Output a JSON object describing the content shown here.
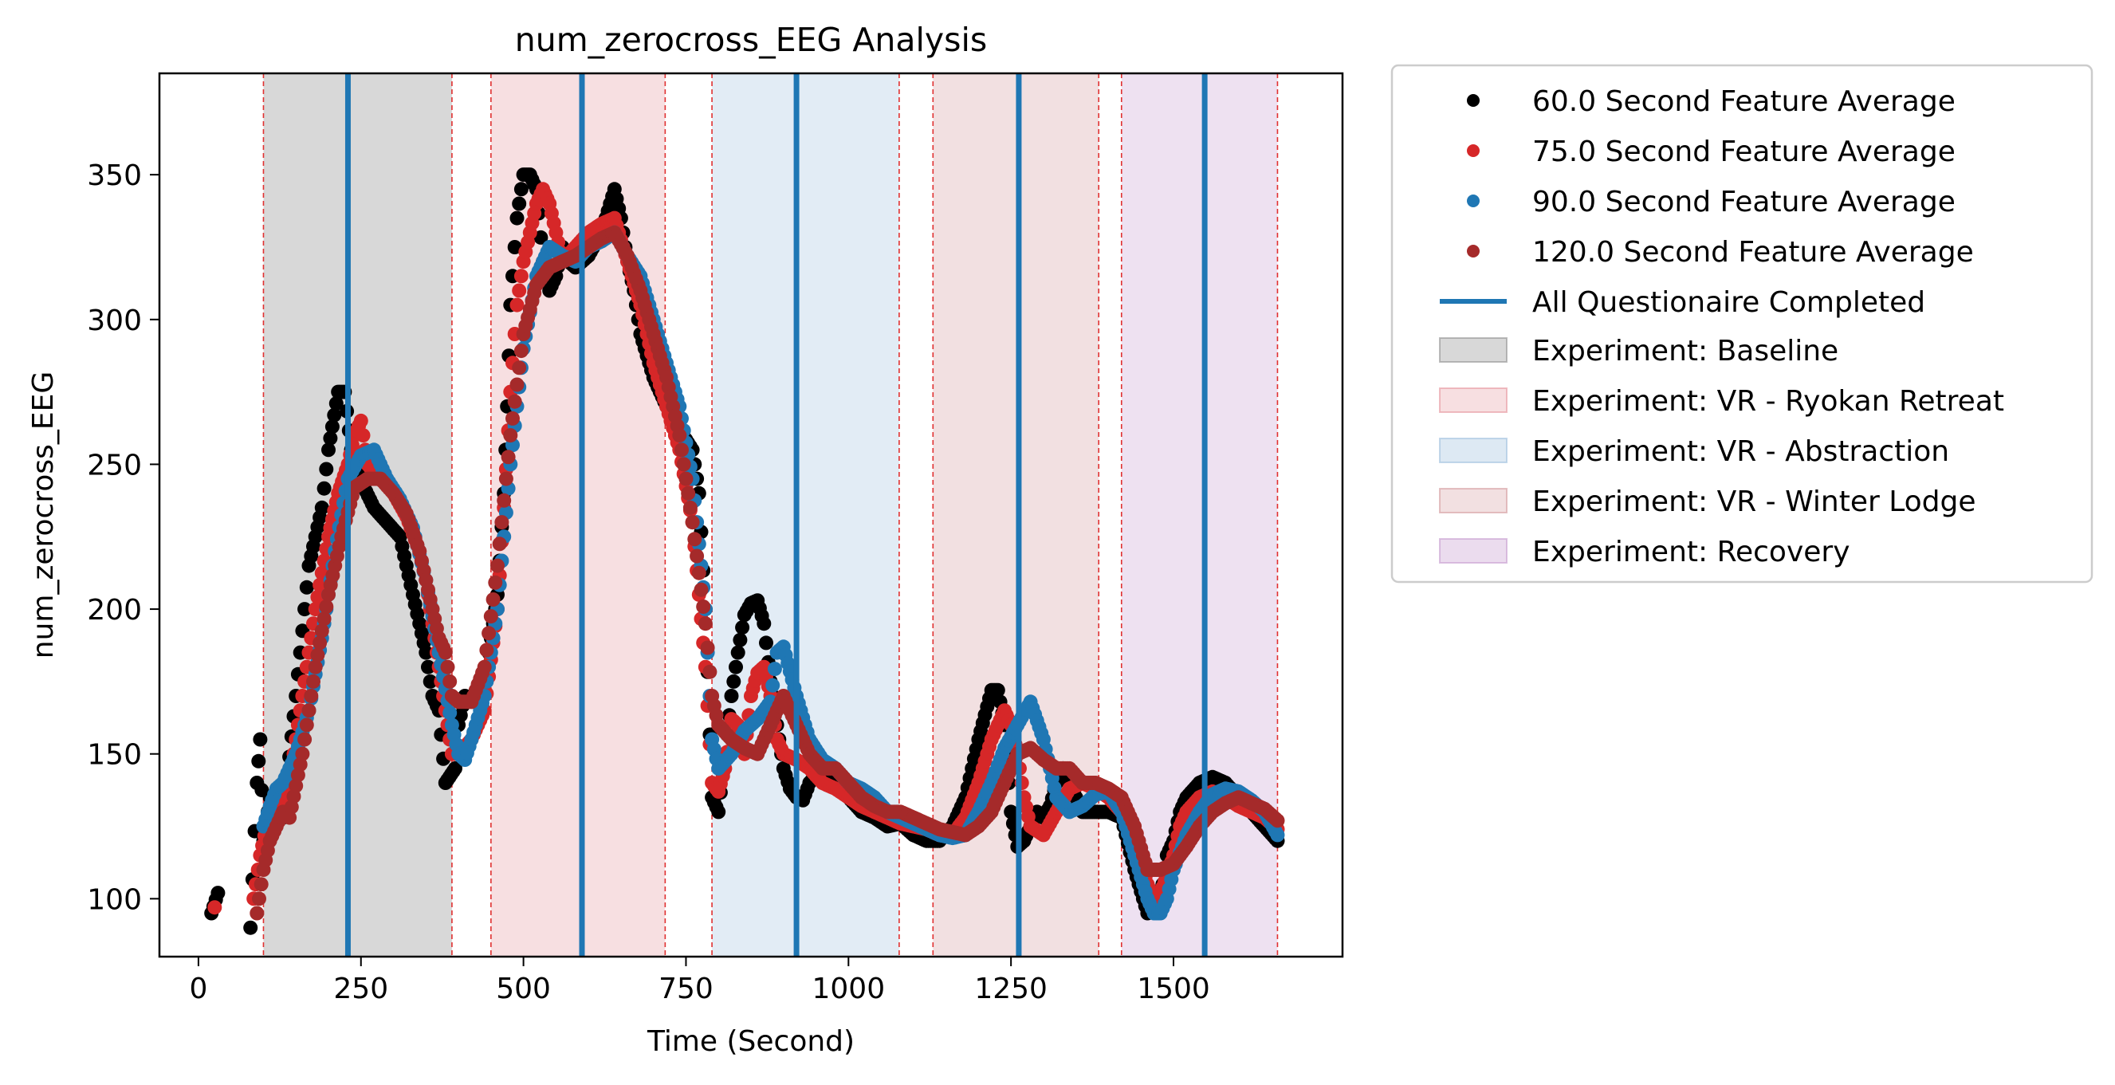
{
  "chart_data": {
    "type": "scatter",
    "title": "num_zerocross_EEG Analysis",
    "xlabel": "Time (Second)",
    "ylabel": "num_zerocross_EEG",
    "xlim": [
      -60,
      1760
    ],
    "ylim": [
      80,
      385
    ],
    "xticks": [
      0,
      250,
      500,
      750,
      1000,
      1250,
      1500
    ],
    "yticks": [
      100,
      150,
      200,
      250,
      300,
      350
    ],
    "legend_position": "outside-right-top",
    "phases": [
      {
        "name": "Baseline",
        "start": 100,
        "end": 390,
        "color": "#7f7f7f",
        "label": "Experiment: Baseline"
      },
      {
        "name": "VR - Ryokan Retreat",
        "start": 450,
        "end": 718,
        "color": "#e6949c",
        "label": "Experiment: VR - Ryokan Retreat"
      },
      {
        "name": "VR - Abstraction",
        "start": 790,
        "end": 1078,
        "color": "#9ebfdd",
        "label": "Experiment: VR - Abstraction"
      },
      {
        "name": "VR - Winter Lodge",
        "start": 1130,
        "end": 1385,
        "color": "#d4999c",
        "label": "Experiment: VR - Winter Lodge"
      },
      {
        "name": "Recovery",
        "start": 1420,
        "end": 1660,
        "color": "#c79bcf",
        "label": "Experiment: Recovery"
      }
    ],
    "questionnaire_lines": {
      "label": "All Questionaire Completed",
      "color": "#1f77b4",
      "x": [
        230,
        590,
        920,
        1262,
        1548
      ]
    },
    "series": [
      {
        "name": "60.0 Second Feature Average",
        "color": "#000000",
        "x": [
          20,
          30,
          80,
          90,
          95,
          100,
          110,
          130,
          150,
          170,
          190,
          200,
          215,
          225,
          235,
          245,
          255,
          270,
          290,
          310,
          330,
          350,
          360,
          370,
          380,
          395,
          400,
          410,
          420,
          440,
          460,
          470,
          475,
          480,
          490,
          500,
          510,
          520,
          530,
          540,
          550,
          560,
          570,
          580,
          600,
          620,
          640,
          650,
          660,
          670,
          680,
          700,
          720,
          740,
          760,
          770,
          780,
          790,
          800,
          810,
          820,
          830,
          840,
          850,
          860,
          870,
          880,
          890,
          900,
          910,
          920,
          930,
          940,
          960,
          980,
          1000,
          1020,
          1040,
          1060,
          1080,
          1100,
          1120,
          1140,
          1160,
          1180,
          1200,
          1220,
          1230,
          1240,
          1250,
          1260,
          1270,
          1280,
          1290,
          1300,
          1310,
          1320,
          1330,
          1340,
          1360,
          1380,
          1400,
          1420,
          1440,
          1460,
          1480,
          1490,
          1500,
          1510,
          1520,
          1540,
          1560,
          1580,
          1600,
          1620,
          1640,
          1660
        ],
        "y": [
          95,
          102,
          90,
          140,
          155,
          120,
          135,
          128,
          170,
          215,
          235,
          255,
          275,
          275,
          255,
          248,
          242,
          235,
          230,
          225,
          205,
          185,
          170,
          165,
          140,
          145,
          160,
          170,
          168,
          175,
          205,
          240,
          270,
          305,
          335,
          350,
          350,
          345,
          320,
          310,
          315,
          325,
          320,
          318,
          322,
          330,
          345,
          335,
          320,
          310,
          295,
          280,
          270,
          262,
          255,
          240,
          200,
          135,
          130,
          150,
          170,
          185,
          198,
          202,
          203,
          195,
          175,
          160,
          145,
          138,
          135,
          134,
          140,
          145,
          140,
          135,
          130,
          128,
          125,
          126,
          122,
          120,
          120,
          125,
          135,
          155,
          172,
          172,
          160,
          130,
          118,
          120,
          125,
          130,
          128,
          132,
          140,
          145,
          140,
          130,
          130,
          130,
          128,
          110,
          95,
          100,
          115,
          120,
          130,
          135,
          140,
          142,
          140,
          135,
          130,
          125,
          120
        ]
      },
      {
        "name": "75.0 Second Feature Average",
        "color": "#d62728",
        "x": [
          25,
          85,
          95,
          105,
          120,
          140,
          160,
          180,
          200,
          215,
          230,
          240,
          250,
          260,
          280,
          300,
          320,
          340,
          350,
          360,
          370,
          380,
          390,
          400,
          420,
          440,
          460,
          470,
          480,
          490,
          500,
          510,
          520,
          530,
          540,
          550,
          560,
          580,
          600,
          620,
          640,
          660,
          680,
          700,
          720,
          740,
          760,
          780,
          790,
          800,
          810,
          820,
          830,
          840,
          850,
          860,
          870,
          880,
          890,
          900,
          920,
          940,
          960,
          980,
          1000,
          1020,
          1040,
          1060,
          1080,
          1100,
          1120,
          1140,
          1160,
          1180,
          1200,
          1220,
          1240,
          1250,
          1260,
          1270,
          1280,
          1300,
          1320,
          1340,
          1360,
          1380,
          1400,
          1420,
          1440,
          1460,
          1470,
          1480,
          1490,
          1500,
          1510,
          1520,
          1540,
          1560,
          1580,
          1600,
          1620,
          1640,
          1660
        ],
        "y": [
          97,
          100,
          115,
          125,
          130,
          140,
          170,
          200,
          225,
          240,
          250,
          260,
          265,
          250,
          245,
          240,
          232,
          220,
          210,
          195,
          180,
          165,
          150,
          150,
          155,
          165,
          200,
          235,
          275,
          305,
          320,
          330,
          340,
          345,
          340,
          330,
          320,
          325,
          330,
          333,
          335,
          320,
          305,
          285,
          270,
          255,
          230,
          180,
          140,
          137,
          145,
          162,
          160,
          150,
          170,
          178,
          180,
          170,
          155,
          150,
          148,
          145,
          140,
          138,
          135,
          132,
          130,
          128,
          126,
          125,
          124,
          122,
          122,
          128,
          140,
          155,
          165,
          160,
          150,
          135,
          125,
          122,
          130,
          138,
          140,
          138,
          135,
          130,
          120,
          105,
          100,
          102,
          108,
          115,
          125,
          130,
          135,
          137,
          135,
          132,
          130,
          128,
          124
        ]
      },
      {
        "name": "90.0 Second Feature Average",
        "color": "#1f77b4",
        "x": [
          100,
          110,
          120,
          130,
          150,
          170,
          190,
          210,
          230,
          250,
          270,
          290,
          310,
          330,
          350,
          370,
          390,
          400,
          410,
          420,
          440,
          460,
          480,
          500,
          520,
          540,
          560,
          580,
          600,
          620,
          640,
          660,
          680,
          700,
          720,
          740,
          760,
          780,
          790,
          800,
          820,
          840,
          860,
          880,
          890,
          900,
          920,
          940,
          960,
          980,
          1000,
          1020,
          1040,
          1060,
          1080,
          1100,
          1120,
          1140,
          1160,
          1180,
          1200,
          1220,
          1240,
          1260,
          1280,
          1300,
          1320,
          1340,
          1360,
          1380,
          1400,
          1420,
          1440,
          1460,
          1470,
          1480,
          1490,
          1500,
          1520,
          1540,
          1560,
          1580,
          1600,
          1620,
          1640,
          1660
        ],
        "y": [
          125,
          132,
          138,
          140,
          150,
          165,
          190,
          220,
          245,
          253,
          255,
          245,
          238,
          228,
          210,
          185,
          160,
          150,
          148,
          155,
          170,
          200,
          250,
          290,
          315,
          325,
          322,
          320,
          325,
          327,
          330,
          322,
          315,
          300,
          285,
          270,
          245,
          200,
          155,
          145,
          150,
          158,
          162,
          168,
          185,
          187,
          170,
          155,
          148,
          145,
          140,
          138,
          135,
          130,
          128,
          126,
          124,
          122,
          121,
          122,
          130,
          140,
          152,
          160,
          168,
          155,
          135,
          130,
          132,
          136,
          137,
          130,
          115,
          100,
          95,
          95,
          100,
          110,
          122,
          130,
          136,
          138,
          137,
          134,
          130,
          122
        ]
      },
      {
        "name": "120.0 Second Feature Average",
        "color": "#a52a2a",
        "x": [
          90,
          100,
          110,
          120,
          130,
          140,
          160,
          180,
          200,
          220,
          240,
          260,
          280,
          300,
          320,
          340,
          350,
          360,
          370,
          380,
          390,
          400,
          410,
          420,
          440,
          460,
          480,
          500,
          520,
          540,
          560,
          580,
          600,
          620,
          640,
          660,
          680,
          700,
          720,
          740,
          760,
          780,
          790,
          800,
          820,
          840,
          860,
          880,
          900,
          920,
          940,
          960,
          980,
          1000,
          1020,
          1040,
          1060,
          1080,
          1100,
          1120,
          1140,
          1160,
          1180,
          1200,
          1220,
          1240,
          1260,
          1280,
          1300,
          1320,
          1340,
          1360,
          1380,
          1400,
          1420,
          1440,
          1460,
          1480,
          1500,
          1520,
          1540,
          1560,
          1580,
          1600,
          1620,
          1640,
          1660
        ],
        "y": [
          95,
          110,
          120,
          125,
          130,
          128,
          150,
          180,
          205,
          225,
          242,
          245,
          245,
          240,
          233,
          220,
          210,
          200,
          190,
          185,
          170,
          168,
          168,
          168,
          180,
          215,
          260,
          295,
          312,
          318,
          320,
          322,
          325,
          328,
          330,
          322,
          310,
          295,
          280,
          260,
          230,
          195,
          170,
          160,
          155,
          152,
          150,
          160,
          170,
          160,
          150,
          145,
          145,
          140,
          135,
          132,
          130,
          130,
          128,
          126,
          124,
          123,
          122,
          125,
          130,
          140,
          150,
          152,
          148,
          145,
          145,
          140,
          140,
          138,
          135,
          125,
          110,
          110,
          112,
          118,
          125,
          130,
          133,
          135,
          133,
          131,
          127
        ]
      }
    ]
  }
}
